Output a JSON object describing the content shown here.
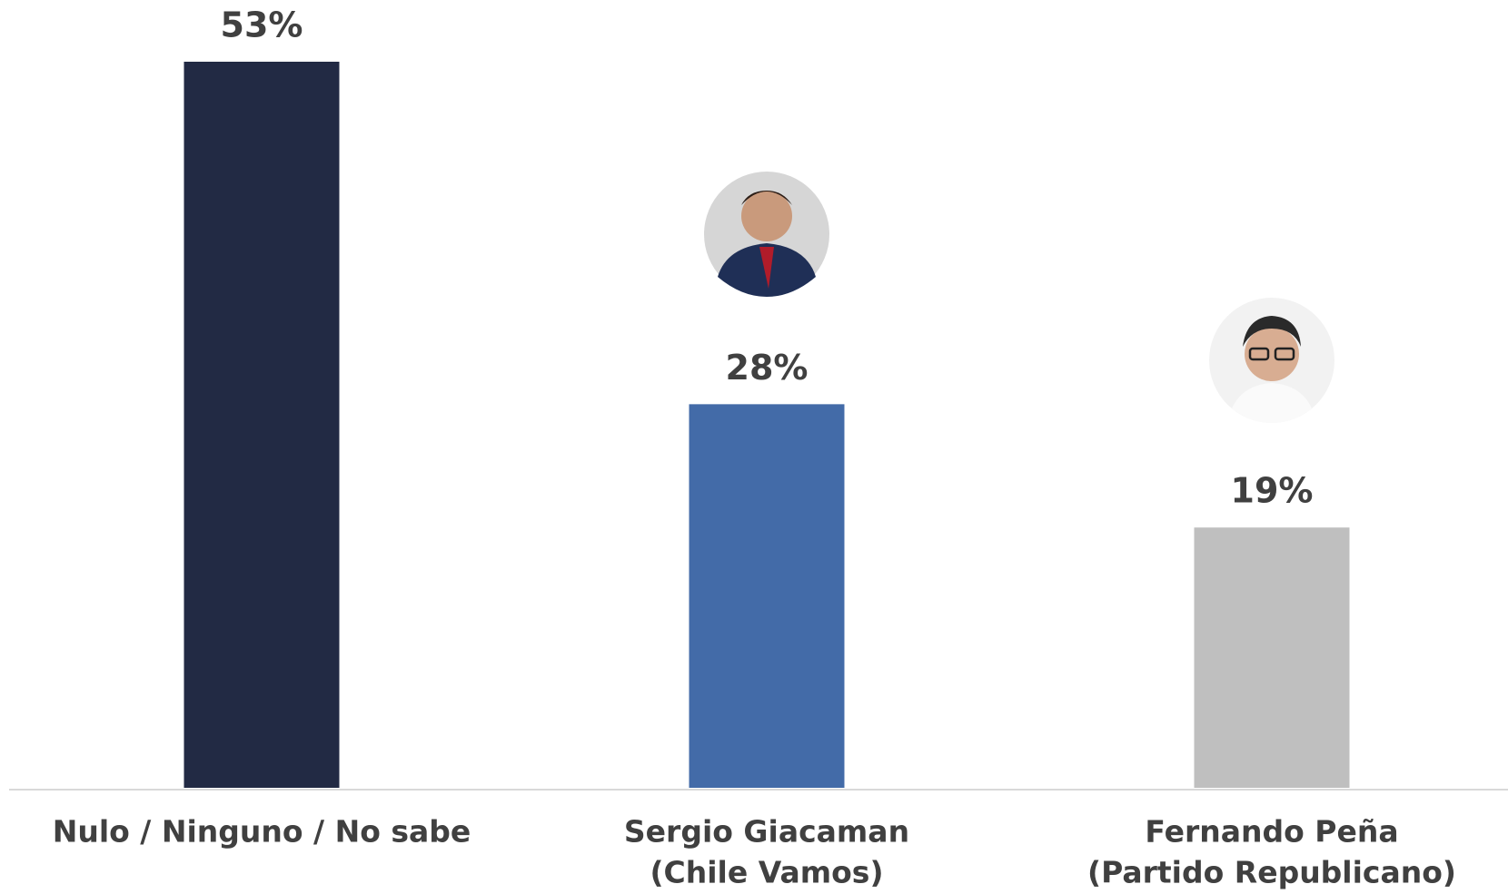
{
  "chart_data": {
    "type": "bar",
    "categories": [
      [
        "Nulo / Ninguno / No sabe"
      ],
      [
        "Sergio Giacaman",
        "(Chile Vamos)"
      ],
      [
        "Fernando Peña",
        "(Partido Republicano)"
      ]
    ],
    "values": [
      53,
      28,
      19
    ],
    "value_labels": [
      "53%",
      "28%",
      "19%"
    ],
    "colors": [
      "#222a44",
      "#436ba8",
      "#bfbfbf"
    ]
  }
}
